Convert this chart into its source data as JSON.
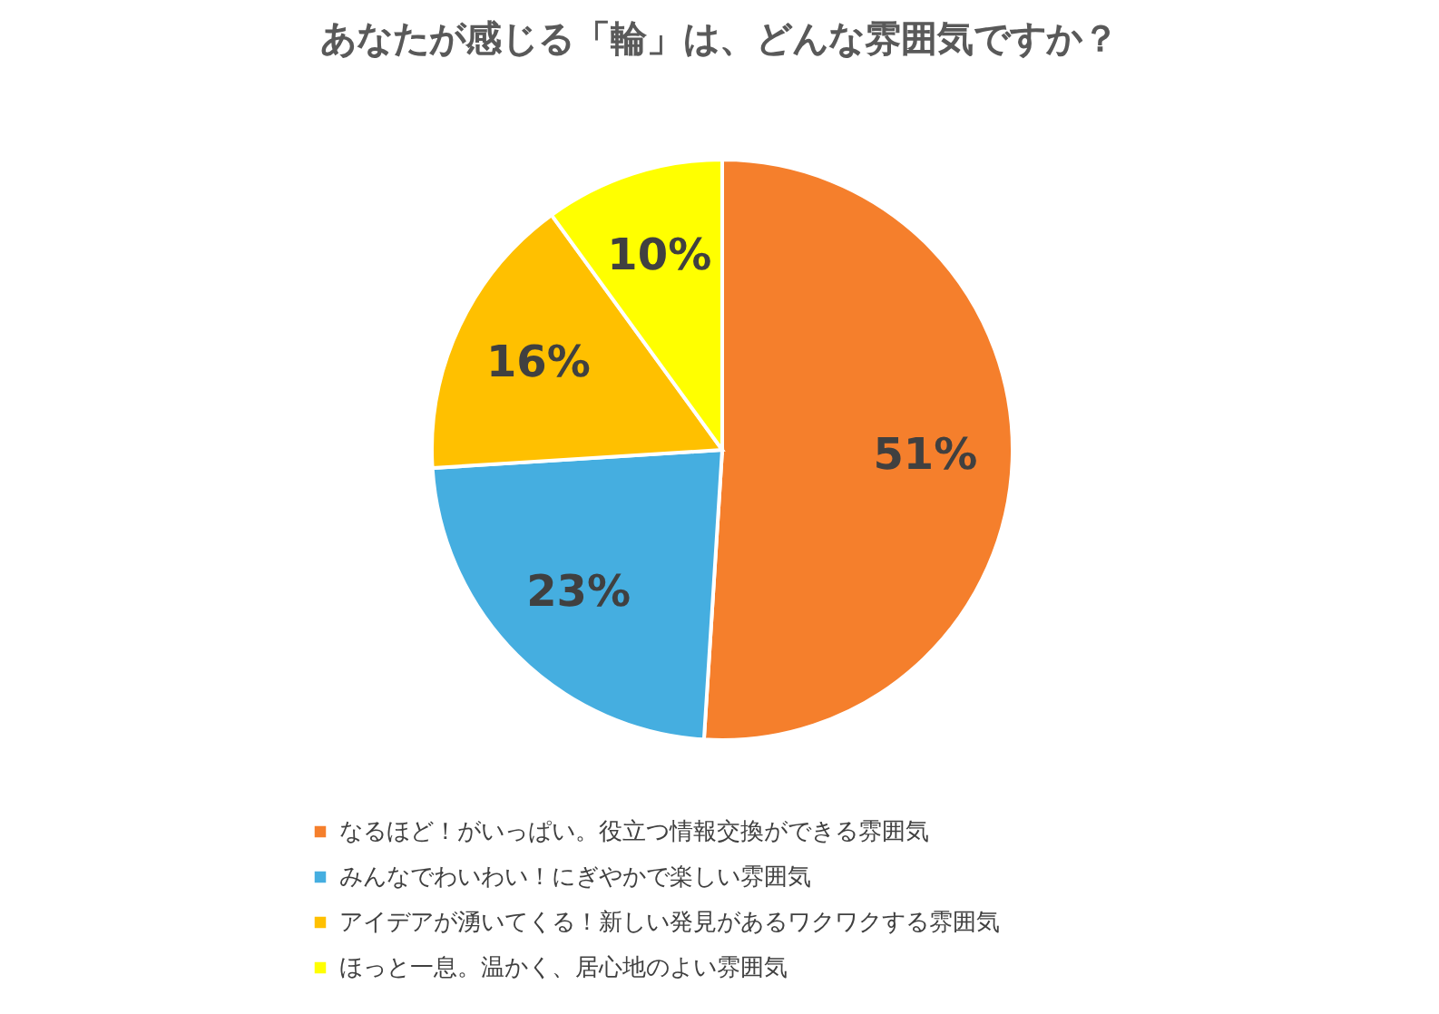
{
  "chart_data": {
    "type": "pie",
    "title": "あなたが感じる「輪」は、どんな雰囲気ですか？",
    "categories": [
      "なるほど！がいっぱい。役立つ情報交換ができる雰囲気",
      "みんなでわいわい！にぎやかで楽しい雰囲気",
      "アイデアが湧いてくる！新しい発見があるワクワクする雰囲気",
      "ほっと一息。温かく、居心地のよい雰囲気"
    ],
    "values": [
      51,
      23,
      16,
      10
    ],
    "colors": [
      "#f57f2c",
      "#45aee0",
      "#ffc000",
      "#ffff00"
    ],
    "value_labels": [
      "51%",
      "23%",
      "16%",
      "10%"
    ],
    "legend": "bottom"
  }
}
